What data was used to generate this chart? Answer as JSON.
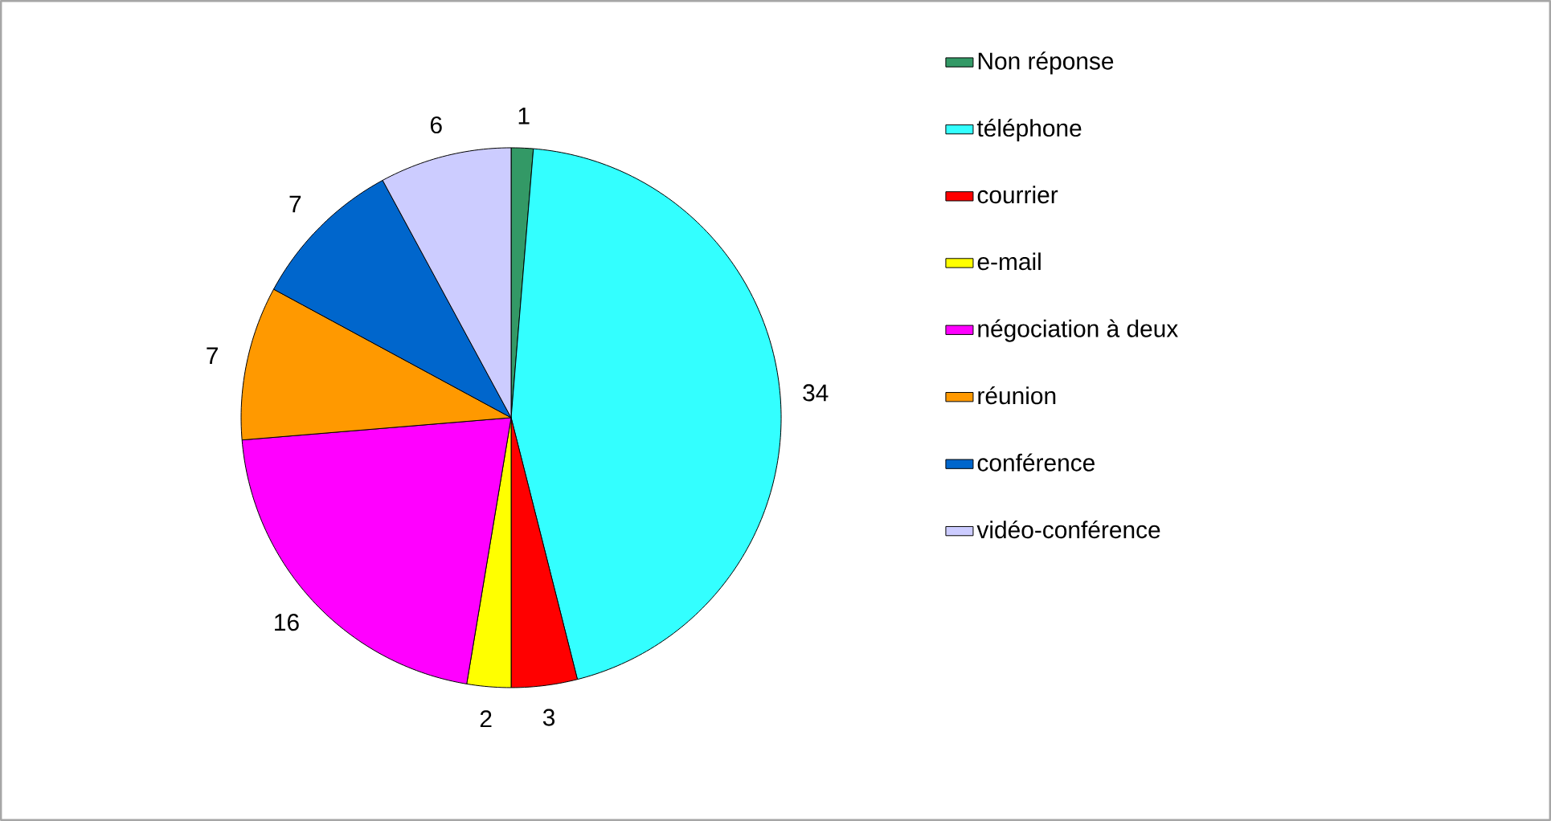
{
  "chart_data": {
    "type": "pie",
    "categories": [
      "Non réponse",
      "téléphone",
      "courrier",
      "e-mail",
      "négociation à deux",
      "réunion",
      "conférence",
      "vidéo-conférence"
    ],
    "values": [
      1,
      34,
      3,
      2,
      16,
      7,
      7,
      6
    ],
    "colors": [
      "#339966",
      "#33ffff",
      "#ff0000",
      "#ffff00",
      "#ff00ff",
      "#ff9900",
      "#0066cc",
      "#ccccff"
    ],
    "data_labels": true,
    "legend": "right"
  }
}
